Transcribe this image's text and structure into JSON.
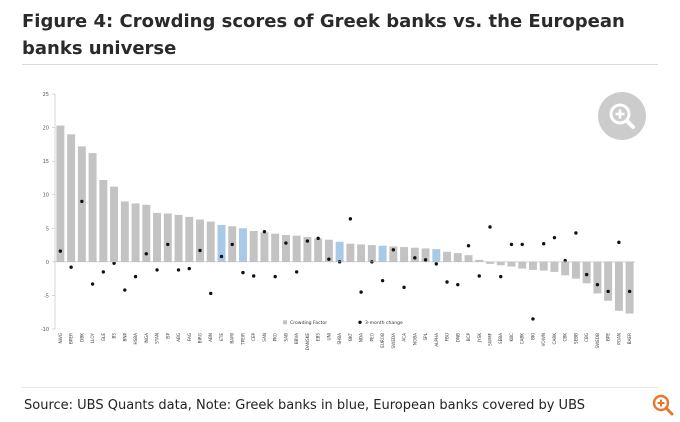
{
  "figure_title": "Figure 4: Crowding scores of Greek banks vs. the European banks universe",
  "source_note": "Source: UBS Quants data, Note: Greek banks in blue, European banks covered by UBS",
  "icons": {
    "zoom_main": "zoom-in-icon",
    "zoom_corner": "zoom-in-icon"
  },
  "colors": {
    "grey_bar": "#c3c3c3",
    "greek_bar": "#a9c9e8",
    "dot": "#111111"
  },
  "chart_data": {
    "type": "bar",
    "title": "",
    "xlabel": "",
    "ylabel": "",
    "ylim": [
      -10,
      25
    ],
    "yticks": [
      25,
      20,
      15,
      10,
      5,
      0,
      -5,
      -10
    ],
    "grid": false,
    "legend_position": "bottom-center",
    "categories": [
      "NWG",
      "BPER",
      "DBK",
      "LLOY",
      "GLE",
      "BS",
      "BNP",
      "HSBA",
      "INGA",
      "STAN",
      "ISP",
      "ABG",
      "FAG",
      "BIRG",
      "ABN",
      "ETE",
      "BAMI",
      "TPEIR",
      "CEP",
      "SAN",
      "PKO",
      "SAB",
      "BBVA",
      "DANSKE",
      "EBS",
      "UNI",
      "SHBA",
      "BKT",
      "NDA",
      "PEO",
      "EUROB",
      "SWEDA",
      "ACA",
      "NOBA",
      "SPL",
      "ALPHA",
      "FBU",
      "DNB",
      "BCP",
      "JYSK",
      "SWMF",
      "SEBA",
      "KBC",
      "CABK",
      "BKI",
      "VOWN",
      "CARK",
      "CBK",
      "SEBB",
      "CBG",
      "SWEDB",
      "BPE",
      "PGAN",
      "BAER"
    ],
    "greek": [
      false,
      false,
      false,
      false,
      false,
      false,
      false,
      false,
      false,
      false,
      false,
      false,
      false,
      false,
      false,
      true,
      false,
      true,
      false,
      false,
      false,
      false,
      false,
      false,
      false,
      false,
      true,
      false,
      false,
      false,
      true,
      false,
      false,
      false,
      false,
      true,
      false,
      false,
      false,
      false,
      false,
      false,
      false,
      false,
      false,
      false,
      false,
      false,
      false,
      false,
      false,
      false,
      false,
      false
    ],
    "series": [
      {
        "name": "Crowding Factor",
        "type": "bar",
        "values": [
          20.3,
          19,
          17.2,
          16.2,
          12.2,
          11.2,
          9,
          8.7,
          8.5,
          7.3,
          7.2,
          7,
          6.7,
          6.3,
          6,
          5.5,
          5.3,
          5,
          4.6,
          4.4,
          4.2,
          4,
          3.9,
          3.7,
          3.5,
          3.3,
          3,
          2.7,
          2.6,
          2.5,
          2.4,
          2.3,
          2.2,
          2.1,
          2,
          1.9,
          1.5,
          1.3,
          1,
          0.3,
          -0.3,
          -0.5,
          -0.7,
          -1,
          -1.2,
          -1.3,
          -1.5,
          -2,
          -2.5,
          -3.2,
          -4.7,
          -5.8,
          -7.3,
          -7.7
        ]
      },
      {
        "name": "3-month change",
        "type": "scatter",
        "values": [
          1.6,
          -0.8,
          9,
          -3.3,
          -1.5,
          -0.2,
          -4.2,
          -2.2,
          1.2,
          -1.2,
          2.6,
          -1.2,
          -1,
          1.7,
          -4.7,
          0.8,
          2.6,
          -1.6,
          -2.1,
          4.5,
          -2.2,
          2.8,
          -1.5,
          3.1,
          3.5,
          0.4,
          0,
          6.4,
          -4.5,
          0,
          -2.8,
          1.8,
          -3.8,
          0.6,
          0.3,
          -0.3,
          -3,
          -3.4,
          2.4,
          -2.1,
          5.2,
          -2.2,
          2.6,
          2.6,
          -8.5,
          2.7,
          3.6,
          0.2,
          4.3,
          -1.9,
          -3.4,
          -4.4,
          2.9,
          -4.4
        ]
      }
    ]
  }
}
